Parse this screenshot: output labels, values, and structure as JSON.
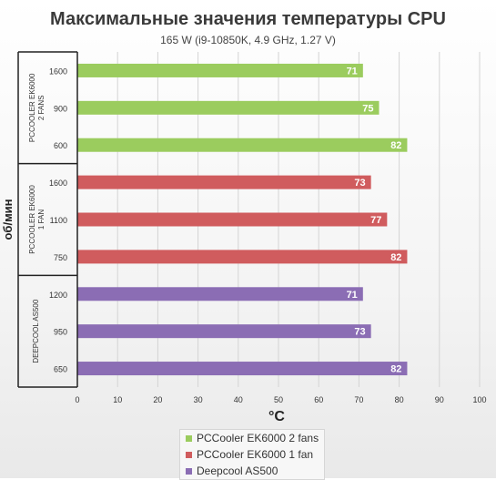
{
  "title": "Максимальные значения температуры CPU",
  "subtitle": "165 W (i9-10850K, 4.9 GHz, 1.27 V)",
  "colors": {
    "green": "#9bcc5e",
    "red": "#d05c5e",
    "purple": "#8b6db4"
  },
  "chart_data": {
    "type": "bar",
    "orientation": "horizontal",
    "xlabel": "°C",
    "ylabel": "об/мин",
    "xlim": [
      0,
      100
    ],
    "xticks": [
      0,
      10,
      20,
      30,
      40,
      50,
      60,
      70,
      80,
      90,
      100
    ],
    "grid": true,
    "legend_position": "bottom",
    "groups": [
      {
        "label": "PCCOOLER EK6000 2 FANS",
        "label_lines": [
          "PCCOOLER EK6000",
          "2 FANS"
        ],
        "series": "PCCooler EK6000 2 fans",
        "color": "#9bcc5e",
        "bars": [
          {
            "rpm": "1600",
            "value": 71
          },
          {
            "rpm": "900",
            "value": 75
          },
          {
            "rpm": "600",
            "value": 82
          }
        ]
      },
      {
        "label": "PCCOOLER EK6000 1 FAN",
        "label_lines": [
          "PCCOOLER EK6000",
          "1 FAN"
        ],
        "series": "PCCooler EK6000 1 fan",
        "color": "#d05c5e",
        "bars": [
          {
            "rpm": "1600",
            "value": 73
          },
          {
            "rpm": "1100",
            "value": 77
          },
          {
            "rpm": "750",
            "value": 82
          }
        ]
      },
      {
        "label": "DEEPCOOL AS500",
        "label_lines": [
          "DEEPCOOL AS500"
        ],
        "series": "Deepcool AS500",
        "color": "#8b6db4",
        "bars": [
          {
            "rpm": "1200",
            "value": 71
          },
          {
            "rpm": "950",
            "value": 73
          },
          {
            "rpm": "650",
            "value": 82
          }
        ]
      }
    ],
    "legend": [
      {
        "name": "PCCooler EK6000 2 fans",
        "color": "#9bcc5e"
      },
      {
        "name": "PCCooler EK6000 1 fan",
        "color": "#d05c5e"
      },
      {
        "name": "Deepcool AS500",
        "color": "#8b6db4"
      }
    ]
  }
}
